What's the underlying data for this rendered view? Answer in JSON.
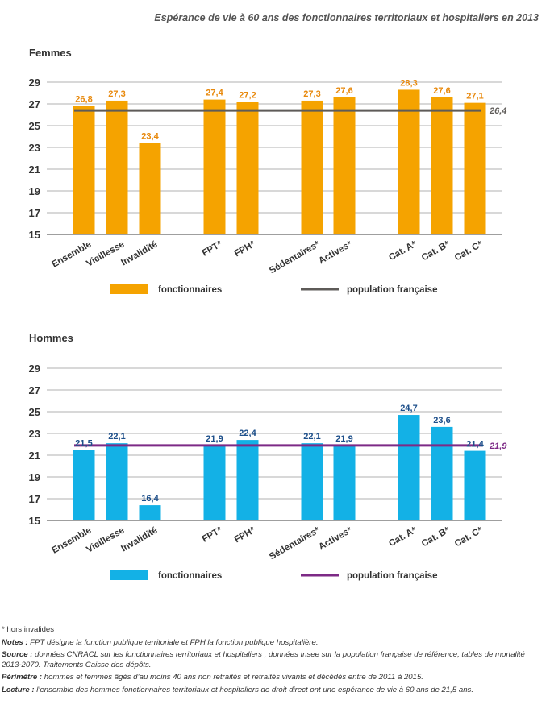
{
  "title": "Espérance de vie à 60 ans des fonctionnaires territoriaux et hospitaliers en 2013",
  "chart_data": [
    {
      "type": "bar",
      "title": "Femmes",
      "categories": [
        "Ensemble",
        "Vieillesse",
        "Invalidité",
        "FPT*",
        "FPH*",
        "Sédentaires*",
        "Actives*",
        "Cat. A*",
        "Cat. B*",
        "Cat. C*"
      ],
      "values": [
        26.8,
        27.3,
        23.4,
        27.4,
        27.2,
        27.3,
        27.6,
        28.3,
        27.6,
        27.1
      ],
      "value_labels": [
        "26,8",
        "27,3",
        "23,4",
        "27,4",
        "27,2",
        "27,3",
        "27,6",
        "28,3",
        "27,6",
        "27,1"
      ],
      "reference_line": {
        "name": "population française",
        "value": 26.4,
        "label": "26,4",
        "color": "#5e5b58"
      },
      "legend": [
        "fonctionnaires",
        "population française"
      ],
      "bar_color": "#f5a300",
      "label_color": "#e8890c",
      "ylim": [
        15,
        29
      ],
      "yticks": [
        "15",
        "17",
        "19",
        "21",
        "23",
        "25",
        "27",
        "29"
      ],
      "xlabel": "",
      "ylabel": ""
    },
    {
      "type": "bar",
      "title": "Hommes",
      "categories": [
        "Ensemble",
        "Vieillesse",
        "Invalidité",
        "FPT*",
        "FPH*",
        "Sédentaires*",
        "Actives*",
        "Cat. A*",
        "Cat. B*",
        "Cat. C*"
      ],
      "values": [
        21.5,
        22.1,
        16.4,
        21.9,
        22.4,
        22.1,
        21.9,
        24.7,
        23.6,
        21.4
      ],
      "value_labels": [
        "21,5",
        "22,1",
        "16,4",
        "21,9",
        "22,4",
        "22,1",
        "21,9",
        "24,7",
        "23,6",
        "21,4"
      ],
      "reference_line": {
        "name": "population française",
        "value": 21.9,
        "label": "21,9",
        "color": "#7d2a86"
      },
      "legend": [
        "fonctionnaires",
        "population française"
      ],
      "bar_color": "#13b1e6",
      "label_color": "#1d4f8a",
      "ylim": [
        15,
        29
      ],
      "yticks": [
        "15",
        "17",
        "19",
        "21",
        "23",
        "25",
        "27",
        "29"
      ],
      "xlabel": "",
      "ylabel": ""
    }
  ],
  "notes": {
    "hors": "* hors invalides",
    "notes_label": "Notes :",
    "notes_text": " FPT désigne la fonction publique territoriale et FPH la fonction publique hospitalière.",
    "source_label": "Source :",
    "source_text": " données CNRACL sur les fonctionnaires territoriaux et hospitaliers ; données Insee sur la population française de référence, tables de mortalité 2013-2070. Traitements Caisse des dépôts.",
    "perimetre_label": "Périmètre :",
    "perimetre_text": " hommes et femmes âgés d’au moins 40 ans non retraités et retraités vivants et décédés entre de 2011 à 2015.",
    "lecture_label": "Lecture :",
    "lecture_text": " l’ensemble des hommes fonctionnaires territoriaux et hospitaliers de droit direct ont une espérance de vie à 60 ans de 21,5 ans."
  }
}
